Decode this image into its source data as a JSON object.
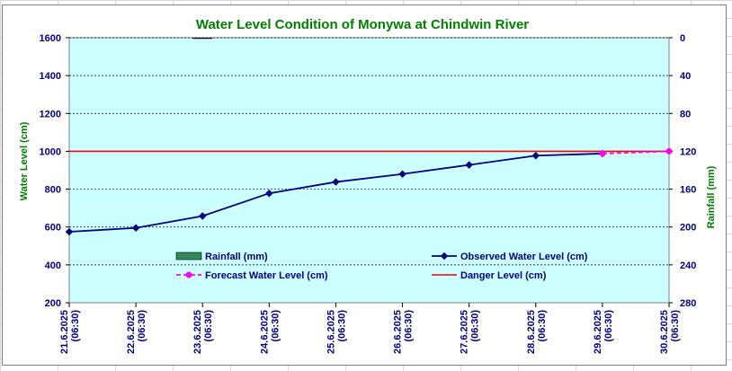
{
  "chart_data": {
    "type": "line",
    "title": "Water Level Condition of Monywa at Chindwin River",
    "ylabel": "Water Level (cm)",
    "y2label": "Rainfall (mm)",
    "ylim": [
      200,
      1600
    ],
    "y2lim": [
      0,
      280
    ],
    "y2_inverted": true,
    "yticks": [
      "200",
      "400",
      "600",
      "800",
      "1000",
      "1200",
      "1400",
      "1600"
    ],
    "y2ticks": [
      "0",
      "40",
      "80",
      "120",
      "160",
      "200",
      "240",
      "280"
    ],
    "categories": [
      {
        "date": "21.6.2025",
        "time": "(06:30)"
      },
      {
        "date": "22.6.2025",
        "time": "(06:30)"
      },
      {
        "date": "23.6.2025",
        "time": "(06:30)"
      },
      {
        "date": "24.6.2025",
        "time": "(06:30)"
      },
      {
        "date": "25.6.2025",
        "time": "(06:30)"
      },
      {
        "date": "26.6.2025",
        "time": "(06:30)"
      },
      {
        "date": "27.6.2025",
        "time": "(06:30)"
      },
      {
        "date": "28.6.2025",
        "time": "(06:30)"
      },
      {
        "date": "29.6.2025",
        "time": "(06:30)"
      },
      {
        "date": "30.6.2025",
        "time": "(06:30)"
      }
    ],
    "series": [
      {
        "name": "Rainfall (mm)",
        "kind": "bar",
        "axis": "right",
        "color": "#2e8b57",
        "values": [
          null,
          null,
          0,
          null,
          null,
          null,
          null,
          null,
          null,
          null
        ]
      },
      {
        "name": "Observed Water Level (cm)",
        "kind": "line",
        "axis": "left",
        "color": "#000080",
        "values": [
          575,
          595,
          658,
          778,
          838,
          880,
          928,
          977,
          988,
          null
        ]
      },
      {
        "name": "Forecast Water Level (cm)",
        "kind": "dashed-line",
        "axis": "left",
        "color": "#ff00ff",
        "values": [
          null,
          null,
          null,
          null,
          null,
          null,
          null,
          null,
          988,
          1000
        ]
      },
      {
        "name": "Danger Level (cm)",
        "kind": "hline",
        "axis": "left",
        "color": "#ff0000",
        "value": 1000
      }
    ],
    "grid": true,
    "legend_position": "bottom-center",
    "plot_background": "#ccffff"
  }
}
